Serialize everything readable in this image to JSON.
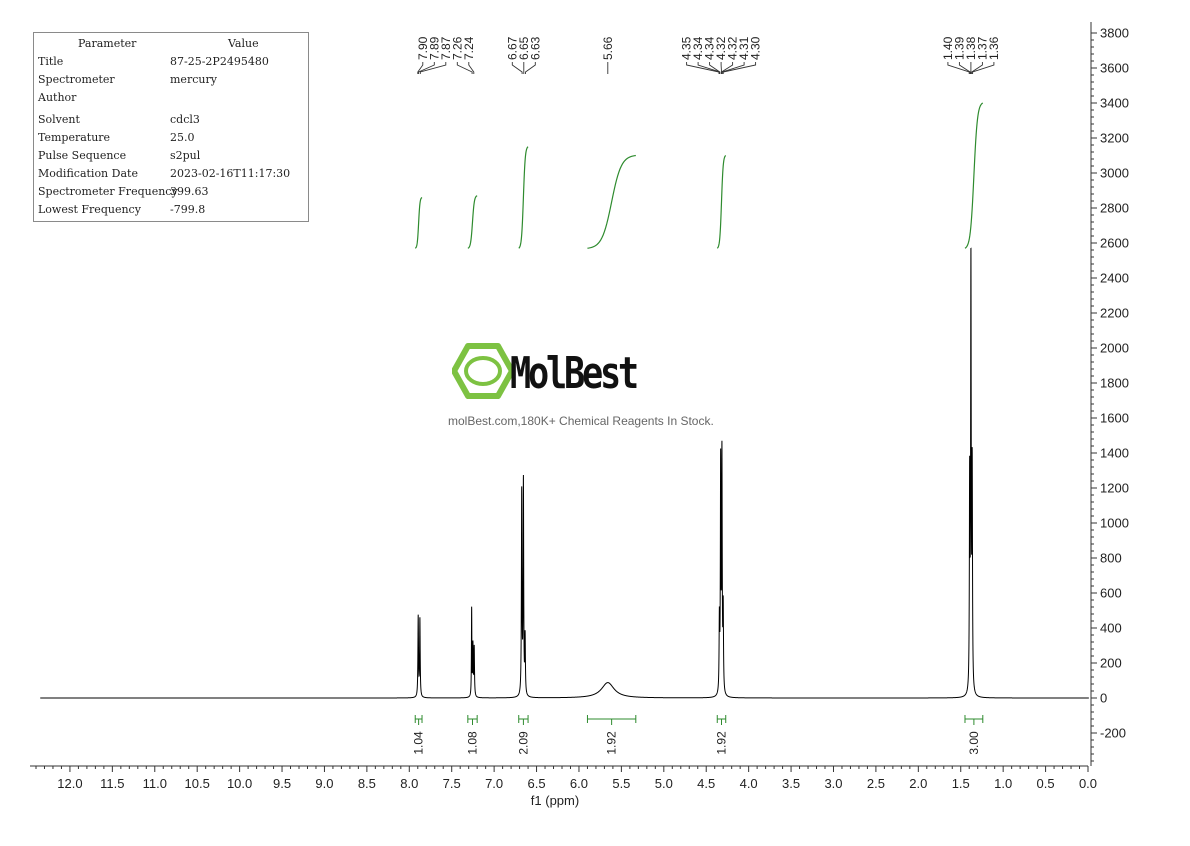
{
  "parameters": {
    "header": [
      "Parameter",
      "Value"
    ],
    "rows": [
      [
        "Title",
        "87-25-2P2495480"
      ],
      [
        "Spectrometer",
        "mercury"
      ],
      [
        "Author",
        ""
      ],
      [
        "Solvent",
        "cdcl3"
      ],
      [
        "Temperature",
        "25.0"
      ],
      [
        "Pulse Sequence",
        "s2pul"
      ],
      [
        "Modification Date",
        "2023-02-16T11:17:30"
      ],
      [
        "Spectrometer Frequency",
        "399.63"
      ],
      [
        "Lowest Frequency",
        "-799.8"
      ]
    ]
  },
  "watermark": {
    "brand": "MolBest",
    "tagline": "molBest.com,180K+ Chemical Reagents In Stock.",
    "logo_icon": "benzene-hexagon-icon",
    "logo_color": "#7dc242"
  },
  "chart_data": {
    "type": "line",
    "title": "",
    "xlabel": "f1 (ppm)",
    "ylabel": "",
    "xlim": [
      12.4,
      0.0
    ],
    "ylim": [
      -380,
      3800
    ],
    "x_ticks": [
      "12.0",
      "11.5",
      "11.0",
      "10.5",
      "10.0",
      "9.5",
      "9.0",
      "8.5",
      "8.0",
      "7.5",
      "7.0",
      "6.5",
      "6.0",
      "5.5",
      "5.0",
      "4.5",
      "4.0",
      "3.5",
      "3.0",
      "2.5",
      "2.0",
      "1.5",
      "1.0",
      "0.5",
      "0.0"
    ],
    "y_ticks": [
      "-200",
      "0",
      "200",
      "400",
      "600",
      "800",
      "1000",
      "1200",
      "1400",
      "1600",
      "1800",
      "2000",
      "2200",
      "2400",
      "2600",
      "2800",
      "3000",
      "3200",
      "3400",
      "3600",
      "3800"
    ],
    "spectrum_color": "#000000",
    "integral_color": "#2e8b2e",
    "peaks": [
      {
        "ppm": 7.895,
        "height": 460,
        "width": 0.004
      },
      {
        "ppm": 7.875,
        "height": 445,
        "width": 0.004
      },
      {
        "ppm": 7.265,
        "height": 500,
        "width": 0.003
      },
      {
        "ppm": 7.25,
        "height": 290,
        "width": 0.004
      },
      {
        "ppm": 7.235,
        "height": 280,
        "width": 0.004
      },
      {
        "ppm": 6.675,
        "height": 1160,
        "width": 0.004
      },
      {
        "ppm": 6.655,
        "height": 1220,
        "width": 0.004
      },
      {
        "ppm": 6.635,
        "height": 330,
        "width": 0.004
      },
      {
        "ppm": 5.66,
        "height": 88,
        "width": 0.09
      },
      {
        "ppm": 4.345,
        "height": 410,
        "width": 0.004
      },
      {
        "ppm": 4.33,
        "height": 1300,
        "width": 0.004
      },
      {
        "ppm": 4.315,
        "height": 1350,
        "width": 0.004
      },
      {
        "ppm": 4.3,
        "height": 470,
        "width": 0.004
      },
      {
        "ppm": 1.395,
        "height": 1200,
        "width": 0.004
      },
      {
        "ppm": 1.38,
        "height": 2430,
        "width": 0.004
      },
      {
        "ppm": 1.365,
        "height": 1250,
        "width": 0.004
      }
    ],
    "peak_labels": [
      {
        "group": [
          "7.90",
          "7.89",
          "7.87",
          "7.26",
          "7.24"
        ],
        "ppm": [
          7.9,
          7.89,
          7.87,
          7.26,
          7.24
        ]
      },
      {
        "group": [
          "6.67",
          "6.65",
          "6.63"
        ],
        "ppm": [
          6.67,
          6.65,
          6.63
        ]
      },
      {
        "group": [
          "5.66"
        ],
        "ppm": [
          5.66
        ]
      },
      {
        "group": [
          "4.35",
          "4.34",
          "4.34",
          "4.32",
          "4.32",
          "4.31",
          "4.30"
        ],
        "ppm": [
          4.35,
          4.34,
          4.34,
          4.32,
          4.32,
          4.31,
          4.3
        ]
      },
      {
        "group": [
          "1.40",
          "1.39",
          "1.38",
          "1.37",
          "1.36"
        ],
        "ppm": [
          1.4,
          1.39,
          1.38,
          1.37,
          1.36
        ]
      }
    ],
    "integrals": [
      {
        "value": "1.04",
        "from": 7.93,
        "to": 7.85,
        "curve_start": 2570,
        "curve_end": 2860
      },
      {
        "value": "1.08",
        "from": 7.31,
        "to": 7.2,
        "curve_start": 2570,
        "curve_end": 2870
      },
      {
        "value": "2.09",
        "from": 6.71,
        "to": 6.6,
        "curve_start": 2570,
        "curve_end": 3150
      },
      {
        "value": "1.92",
        "from": 5.9,
        "to": 5.33,
        "curve_start": 2570,
        "curve_end": 3100
      },
      {
        "value": "1.92",
        "from": 4.37,
        "to": 4.27,
        "curve_start": 2570,
        "curve_end": 3100
      },
      {
        "value": "3.00",
        "from": 1.45,
        "to": 1.24,
        "curve_start": 2570,
        "curve_end": 3400
      }
    ]
  }
}
